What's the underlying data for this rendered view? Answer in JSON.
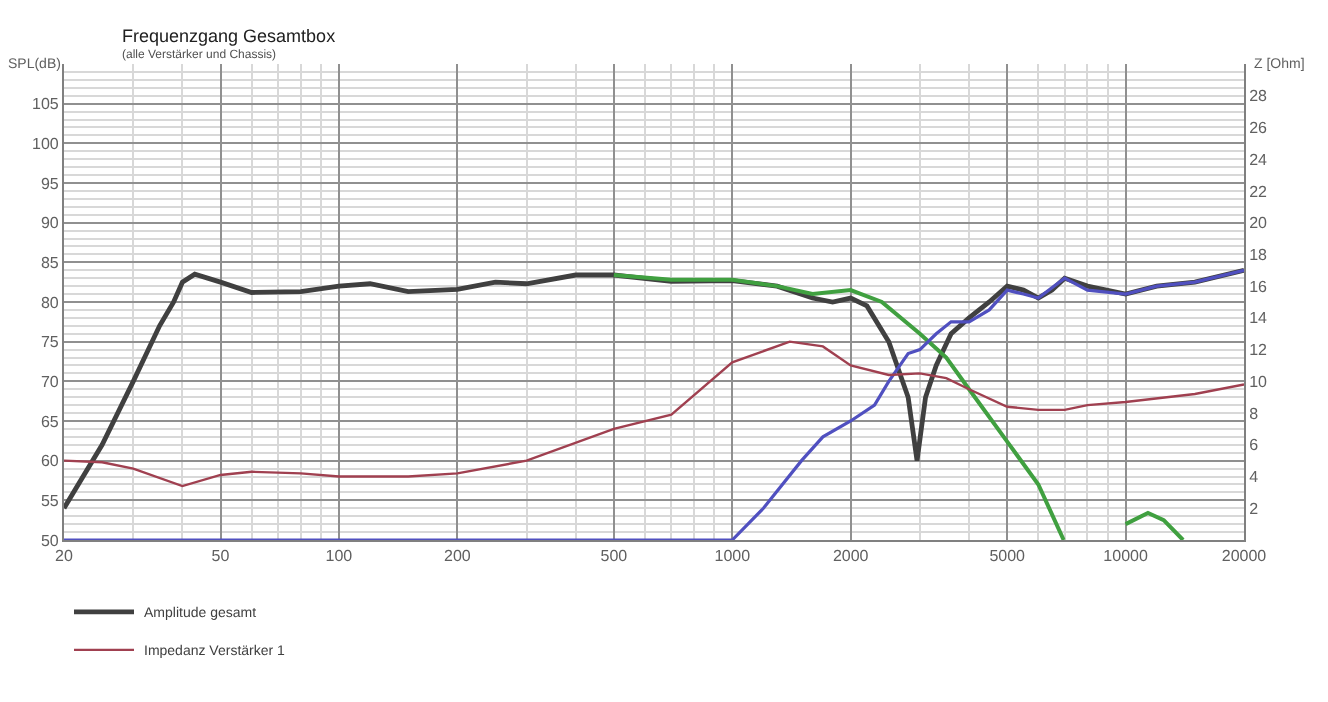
{
  "chart_data": {
    "type": "line",
    "title": "Frequenzgang Gesamtbox",
    "subtitle": "(alle Verstärker und Chassis)",
    "ylabel": "SPL(dB)",
    "y2label": "Z [Ohm]",
    "log": "x",
    "xlim": [
      20,
      20000
    ],
    "xticks": [
      20,
      50,
      100,
      200,
      500,
      1000,
      2000,
      5000,
      10000,
      20000
    ],
    "ylim": [
      50,
      110
    ],
    "yticks": [
      50,
      55,
      60,
      65,
      70,
      75,
      80,
      85,
      90,
      95,
      100,
      105
    ],
    "y2lim": [
      0,
      30
    ],
    "y2ticks": [
      2,
      4,
      6,
      8,
      10,
      12,
      14,
      16,
      18,
      20,
      22,
      24,
      26,
      28
    ],
    "grid": true,
    "legend": "bottom",
    "series": [
      {
        "name": "Amplitude gesamt",
        "color": "#404040",
        "x": [
          20,
          25,
          30,
          35,
          38,
          40,
          43,
          50,
          60,
          80,
          100,
          120,
          150,
          200,
          250,
          300,
          400,
          500,
          700,
          1000,
          1300,
          1600,
          1800,
          2000,
          2200,
          2500,
          2800,
          2950,
          3100,
          3300,
          3600,
          4000,
          4500,
          5000,
          5500,
          6000,
          6500,
          7000,
          8000,
          10000,
          12000,
          15000,
          20000
        ],
        "values": [
          54,
          62,
          70,
          77,
          80,
          82.5,
          83.5,
          82.5,
          81.2,
          81.3,
          82,
          82.3,
          81.3,
          81.6,
          82.5,
          82.3,
          83.4,
          83.4,
          82.6,
          82.7,
          82,
          80.5,
          80,
          80.5,
          79.5,
          75,
          68,
          60,
          68,
          72,
          76,
          78,
          80,
          82,
          81.5,
          80.5,
          81.5,
          83,
          82,
          81,
          82,
          82.5,
          84
        ]
      },
      {
        "color": "#40a040",
        "x": [
          500,
          700,
          1000,
          1300,
          1600,
          2000,
          2400,
          3000,
          3500,
          4000,
          5000,
          6000,
          6960,
          8000,
          9000,
          10000,
          11400,
          12500,
          14000
        ],
        "values": [
          83.4,
          82.8,
          82.8,
          82,
          81,
          81.5,
          80,
          76,
          73,
          69,
          62.4,
          57,
          50,
          null,
          null,
          52,
          53.4,
          52.5,
          50
        ]
      },
      {
        "color": "#5050c0",
        "x": [
          20,
          1000,
          1200,
          1500,
          1700,
          2000,
          2300,
          2500,
          2800,
          3000,
          3300,
          3600,
          4000,
          4500,
          5000,
          5500,
          6000,
          7000,
          8000,
          10000,
          12000,
          15000,
          20000
        ],
        "values": [
          50,
          50,
          54,
          60,
          63,
          65,
          67,
          70,
          73.5,
          74,
          76,
          77.5,
          77.5,
          79,
          81.5,
          81,
          80.5,
          83,
          81.5,
          81,
          82,
          82.5,
          84
        ]
      },
      {
        "name": "Impedanz Verstärker 1",
        "color": "#a04050",
        "axis": "y2",
        "x": [
          20,
          25,
          30,
          40,
          50,
          60,
          80,
          100,
          150,
          200,
          300,
          500,
          700,
          1000,
          1400,
          1700,
          2000,
          2500,
          3000,
          3500,
          4000,
          5000,
          6000,
          7000,
          8000,
          10000,
          15000,
          20000
        ],
        "values": [
          5.0,
          4.9,
          4.5,
          3.4,
          4.1,
          4.3,
          4.2,
          4.0,
          4.0,
          4.2,
          5.0,
          7.0,
          7.9,
          11.2,
          12.5,
          12.2,
          11,
          10.4,
          10.5,
          10.2,
          9.5,
          8.4,
          8.2,
          8.2,
          8.5,
          8.7,
          9.2,
          9.8
        ]
      }
    ]
  }
}
